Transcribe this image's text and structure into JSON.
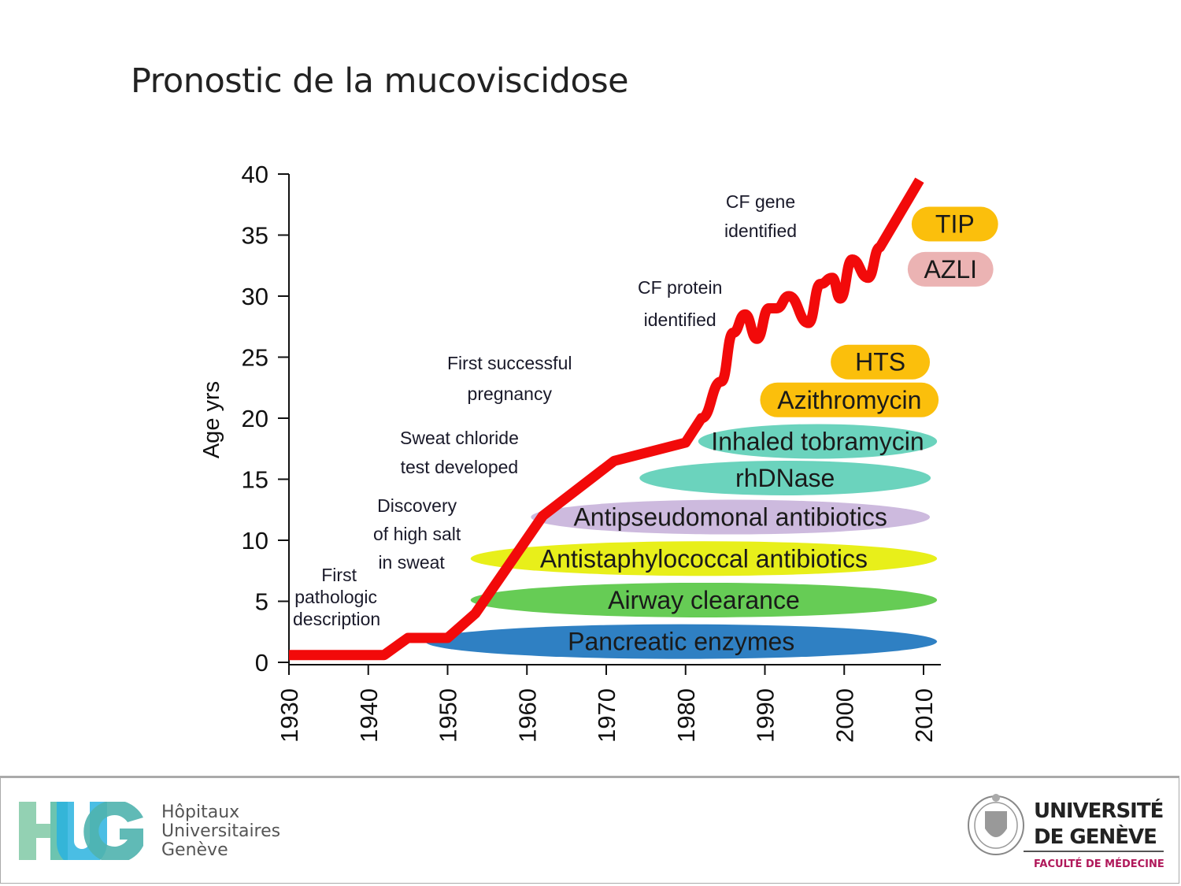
{
  "slide": {
    "title": "Pronostic de la mucoviscidose"
  },
  "chart_data": {
    "type": "line",
    "title": "",
    "xlabel": "",
    "ylabel": "Age yrs",
    "xlim": [
      1930,
      2010
    ],
    "ylim": [
      0,
      40
    ],
    "x_ticks": [
      1930,
      1940,
      1950,
      1960,
      1970,
      1980,
      1990,
      2000,
      2010
    ],
    "y_ticks": [
      0,
      5,
      10,
      15,
      20,
      25,
      30,
      35,
      40
    ],
    "grid": false,
    "series": [
      {
        "color": "#f20a0a",
        "x": [
          1930,
          1942,
          1945,
          1950,
          1953.5,
          1962,
          1971,
          1980,
          1982,
          1984.5,
          1986,
          1987.5,
          1989,
          1990.5,
          1991.5,
          1993,
          1995.5,
          1997,
          1998.5,
          1999.5,
          2001,
          2003,
          2004.5,
          2009.5
        ],
        "y": [
          0.6,
          0.6,
          2,
          2,
          4,
          12,
          16.5,
          18,
          20,
          23,
          27,
          28.5,
          26.5,
          29,
          29,
          30,
          27.8,
          31,
          31.5,
          29.8,
          33,
          31.5,
          34,
          39.5
        ]
      }
    ],
    "therapies": [
      {
        "label": "Pancreatic enzymes",
        "color": "#2f80c3",
        "x_start": 1947.2,
        "x_end": 2011.7,
        "y": 1.7
      },
      {
        "label": "Airway clearance",
        "color": "#66cc55",
        "x_start": 1952.9,
        "x_end": 2011.7,
        "y": 5.1
      },
      {
        "label": "Antistaphylococcal antibiotics",
        "color": "#e8ef1a",
        "x_start": 1952.9,
        "x_end": 2011.7,
        "y": 8.5
      },
      {
        "label": "Antipseudomonal antibiotics",
        "color": "#cdbade",
        "x_start": 1960.5,
        "x_end": 2010.8,
        "y": 11.9
      },
      {
        "label": "rhDNase",
        "color": "#6bd3bd",
        "x_start": 1974.2,
        "x_end": 2010.9,
        "y": 15.1
      },
      {
        "label": "Inhaled tobramycin",
        "color": "#6bd3bd",
        "x_start": 1981.6,
        "x_end": 2011.7,
        "y": 18.1
      },
      {
        "label": "Azithromycin",
        "color": "#fbbf0c",
        "x_start": 1989.4,
        "x_end": 2011.9,
        "y": 21.5
      },
      {
        "label": "HTS",
        "color": "#fbbf0c",
        "x_start": 1998.3,
        "x_end": 2010.8,
        "y": 24.6
      },
      {
        "label": "AZLI",
        "color": "#ebb3b3",
        "x_start": 2008.0,
        "x_end": 2018.8,
        "y": 32.2
      },
      {
        "label": "TIP",
        "color": "#fbbf0c",
        "x_start": 2008.5,
        "x_end": 2019.4,
        "y": 35.9
      }
    ],
    "annotations": [
      {
        "lines": [
          "First",
          "pathologic",
          "description"
        ]
      },
      {
        "lines": [
          "Discovery",
          "of high salt",
          "in sweat"
        ]
      },
      {
        "lines": [
          "Sweat chloride",
          "test developed"
        ]
      },
      {
        "lines": [
          "First successful",
          "pregnancy"
        ]
      },
      {
        "lines": [
          "CF protein",
          "identified"
        ]
      },
      {
        "lines": [
          "CF gene",
          "identified"
        ]
      }
    ]
  },
  "footer": {
    "hug": {
      "logo": "HUG",
      "lines": [
        "Hôpitaux",
        "Universitaires",
        "Genève"
      ]
    },
    "unige": {
      "lines": [
        "UNIVERSITÉ",
        "DE GENÈVE"
      ],
      "faculty": "FACULTÉ DE MÉDECINE",
      "seal": "Universitas Genevensis seal"
    }
  }
}
